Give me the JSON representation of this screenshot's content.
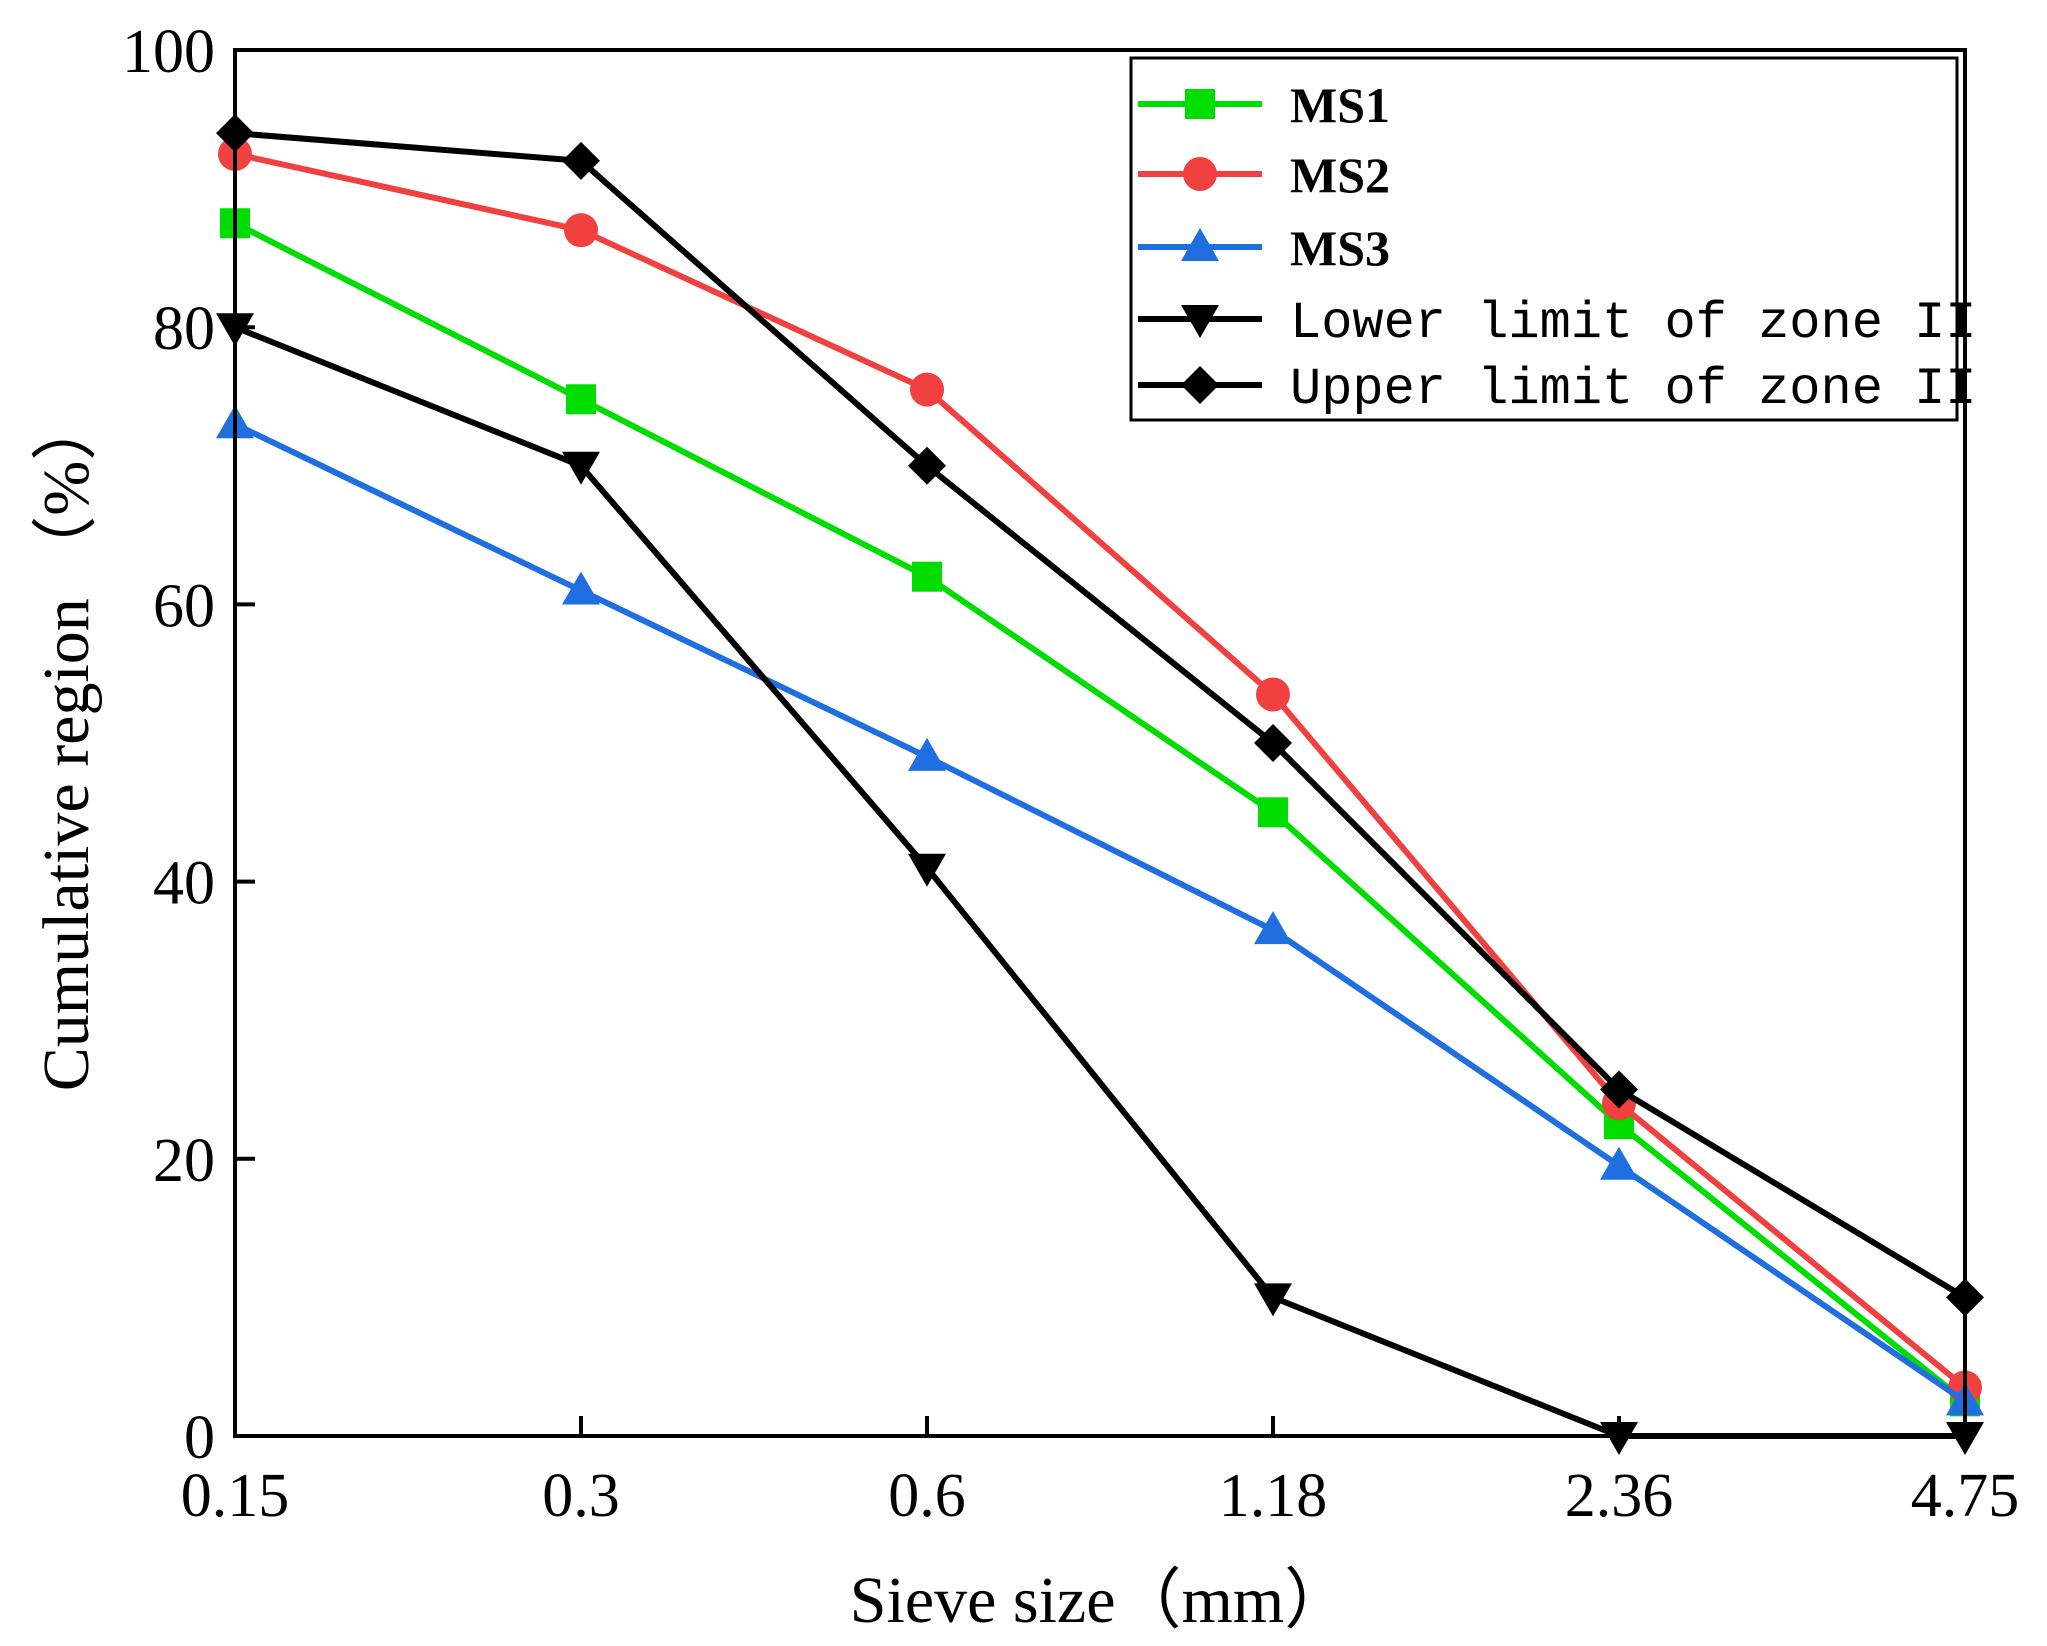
{
  "chart_data": {
    "type": "line",
    "title": "",
    "xlabel": "Sieve size（mm）",
    "ylabel": "Cumulative region （%）",
    "categories": [
      "0.15",
      "0.3",
      "0.6",
      "1.18",
      "2.36",
      "4.75"
    ],
    "ylim": [
      0,
      100
    ],
    "yticks": [
      0,
      20,
      40,
      60,
      80,
      100
    ],
    "legend_position": "top-right",
    "grid": false,
    "series": [
      {
        "name": "MS1",
        "color": "#00dd00",
        "marker": "square",
        "values": [
          87.5,
          74.8,
          62,
          45,
          22.5,
          2.5
        ]
      },
      {
        "name": "MS2",
        "color": "#f04040",
        "marker": "circle",
        "values": [
          92.5,
          87,
          75.5,
          53.5,
          24,
          3.5
        ]
      },
      {
        "name": "MS3",
        "color": "#1f6fe0",
        "marker": "triangle-up",
        "values": [
          73,
          61,
          49,
          36.5,
          19.5,
          2.5
        ]
      },
      {
        "name": "Lower limit of zone II",
        "color": "#000000",
        "marker": "triangle-down",
        "values": [
          80,
          70,
          41,
          10,
          0,
          0
        ]
      },
      {
        "name": "Upper limit of zone II",
        "color": "#000000",
        "marker": "diamond",
        "values": [
          94,
          92,
          70,
          50,
          25,
          10
        ]
      }
    ]
  }
}
